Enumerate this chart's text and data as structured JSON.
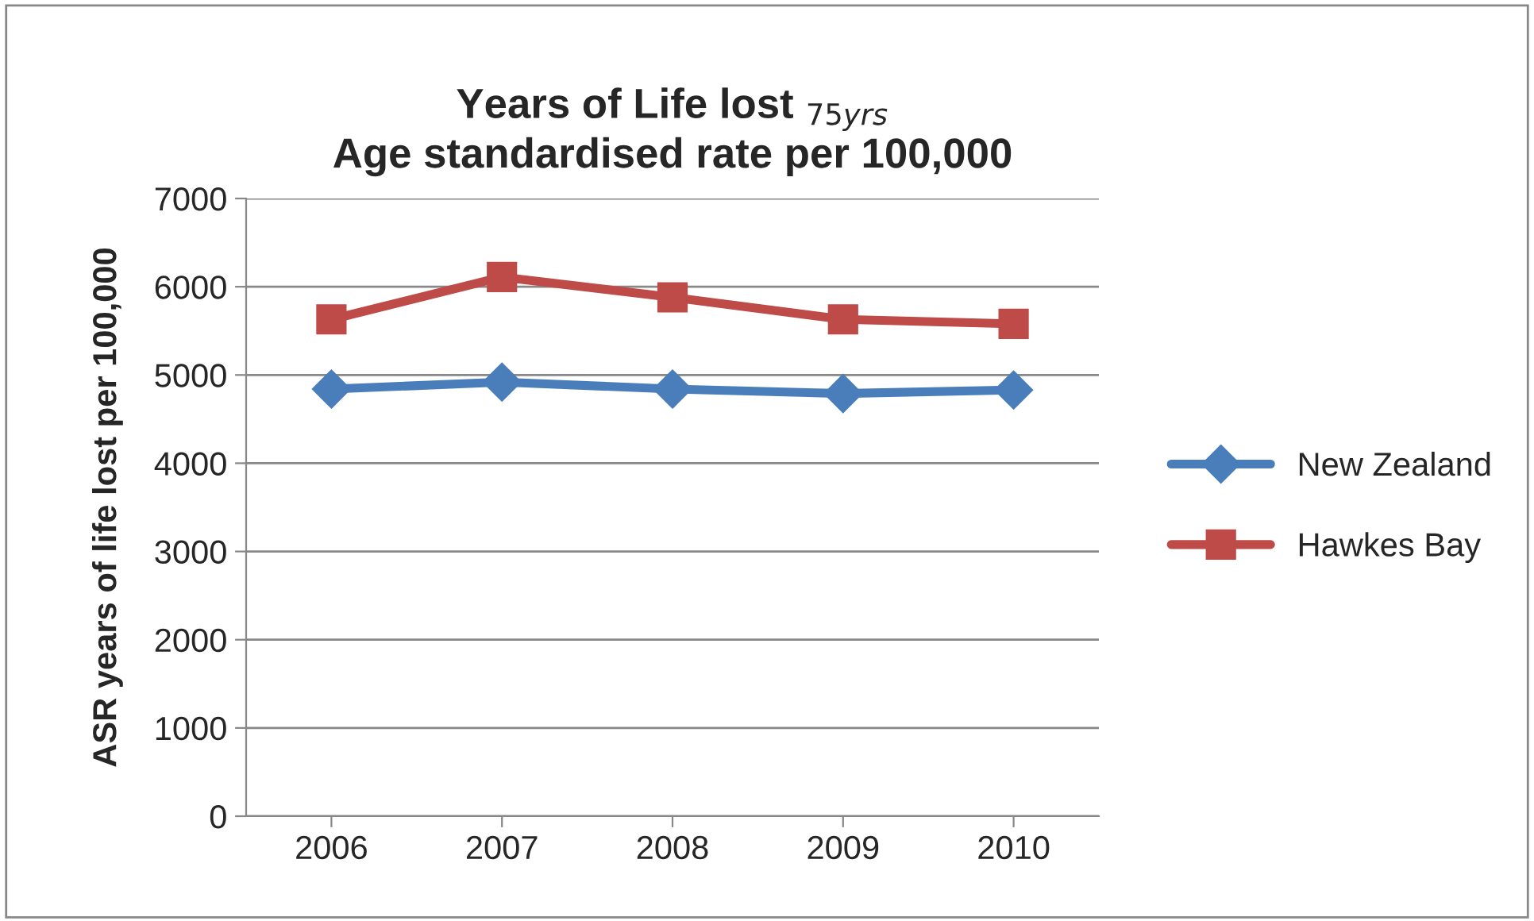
{
  "chart_data": {
    "type": "line",
    "title": "Years of Life lost $_{75yrs}$\nAge standardised rate per 100,000",
    "ylabel": "ASR years of life lost per 100,000",
    "categories": [
      "2006",
      "2007",
      "2008",
      "2009",
      "2010"
    ],
    "series": [
      {
        "name": "New Zealand",
        "color": "#4a7ebb",
        "marker": "diamond",
        "values": [
          4840,
          4920,
          4840,
          4790,
          4830
        ]
      },
      {
        "name": "Hawkes Bay",
        "color": "#be4b48",
        "marker": "square",
        "values": [
          5630,
          6110,
          5880,
          5630,
          5580
        ]
      }
    ],
    "ylim": [
      0,
      7000
    ],
    "yticks": [
      0,
      1000,
      2000,
      3000,
      4000,
      5000,
      6000,
      7000
    ],
    "grid": "y",
    "legend": "right"
  }
}
